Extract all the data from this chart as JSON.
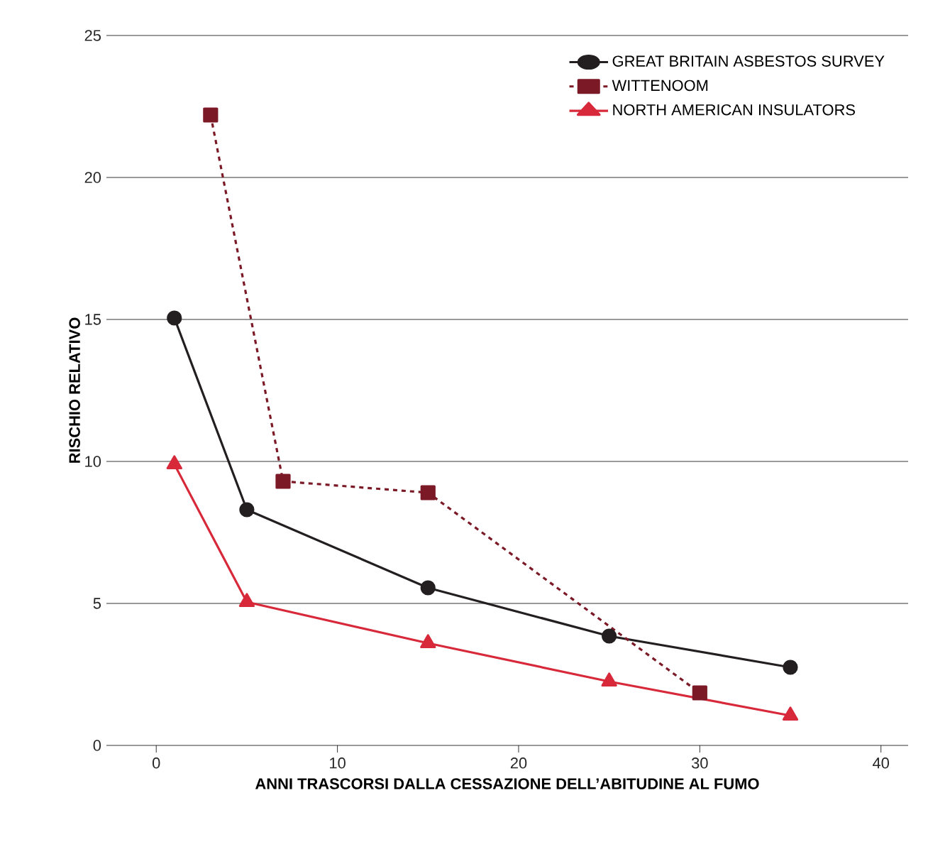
{
  "chart_data": {
    "type": "line",
    "xlabel": "ANNI TRASCORSI DALLA CESSAZIONE DELL’ABITUDINE AL FUMO",
    "ylabel": "RISCHIO RELATIVO",
    "xlim": [
      -2.75,
      41.5
    ],
    "xticks": [
      0,
      10,
      20,
      30,
      40
    ],
    "ylim": [
      0,
      25
    ],
    "yticks": [
      0,
      5,
      10,
      15,
      20,
      25
    ],
    "grid": "y",
    "legend": "top right",
    "series": [
      {
        "name": "GREAT BRITAIN ASBESTOS SURVEY",
        "color": "#231f20",
        "marker": "circle",
        "line_style": "solid",
        "x": [
          1,
          5,
          15,
          25,
          35
        ],
        "values": [
          15.05,
          8.3,
          5.55,
          3.85,
          2.75
        ]
      },
      {
        "name": "WITTENOOM",
        "color": "#7b1a26",
        "marker": "square",
        "line_style": "dashed",
        "x": [
          3,
          7,
          15,
          30
        ],
        "values": [
          22.2,
          9.3,
          8.9,
          1.85
        ]
      },
      {
        "name": "NORTH AMERICAN INSULATORS",
        "color": "#d7293a",
        "marker": "triangle",
        "line_style": "solid",
        "x": [
          1,
          5,
          15,
          25,
          35
        ],
        "values": [
          9.9,
          5.05,
          3.6,
          2.25,
          1.05
        ]
      }
    ]
  }
}
